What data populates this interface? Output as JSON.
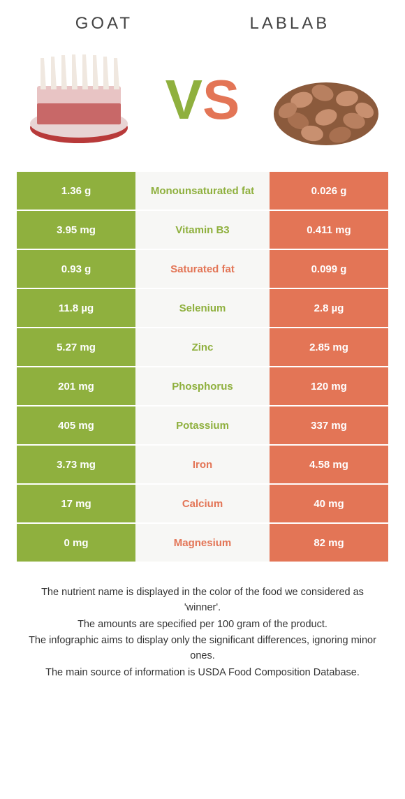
{
  "colors": {
    "left": "#8fb03e",
    "right": "#e37556",
    "mid_bg": "#f7f7f5"
  },
  "header": {
    "left_title": "GOAT",
    "right_title": "LABLAB"
  },
  "vs": {
    "v": "V",
    "s": "S"
  },
  "rows": [
    {
      "left": "1.36 g",
      "label": "Monounsaturated fat",
      "right": "0.026 g",
      "winner": "left"
    },
    {
      "left": "3.95 mg",
      "label": "Vitamin B3",
      "right": "0.411 mg",
      "winner": "left"
    },
    {
      "left": "0.93 g",
      "label": "Saturated fat",
      "right": "0.099 g",
      "winner": "right"
    },
    {
      "left": "11.8 µg",
      "label": "Selenium",
      "right": "2.8 µg",
      "winner": "left"
    },
    {
      "left": "5.27 mg",
      "label": "Zinc",
      "right": "2.85 mg",
      "winner": "left"
    },
    {
      "left": "201 mg",
      "label": "Phosphorus",
      "right": "120 mg",
      "winner": "left"
    },
    {
      "left": "405 mg",
      "label": "Potassium",
      "right": "337 mg",
      "winner": "left"
    },
    {
      "left": "3.73 mg",
      "label": "Iron",
      "right": "4.58 mg",
      "winner": "right"
    },
    {
      "left": "17 mg",
      "label": "Calcium",
      "right": "40 mg",
      "winner": "right"
    },
    {
      "left": "0 mg",
      "label": "Magnesium",
      "right": "82 mg",
      "winner": "right"
    }
  ],
  "footer": {
    "line1": "The nutrient name is displayed in the color of the food we considered as 'winner'.",
    "line2": "The amounts are specified per 100 gram of the product.",
    "line3": "The infographic aims to display only the significant differences, ignoring minor ones.",
    "line4": "The main source of information is USDA Food Composition Database."
  }
}
